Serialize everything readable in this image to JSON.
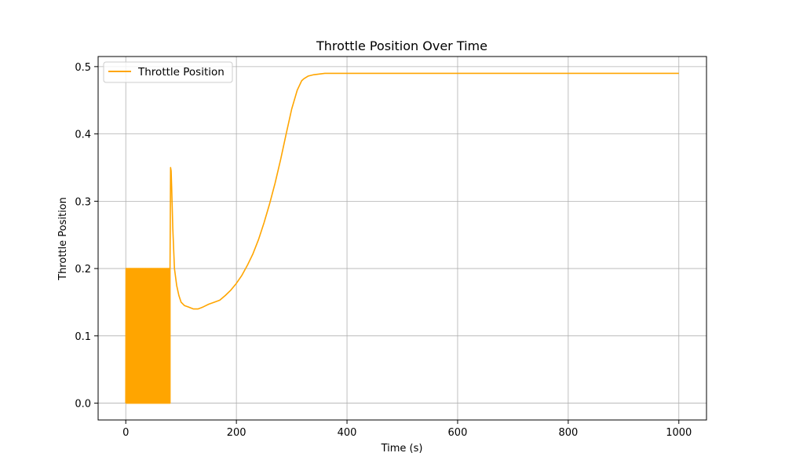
{
  "chart_data": {
    "type": "line",
    "title": "Throttle Position Over Time",
    "xlabel": "Time (s)",
    "ylabel": "Throttle Position",
    "xlim": [
      -50,
      1050
    ],
    "ylim": [
      -0.025,
      0.515
    ],
    "xticks": [
      0,
      200,
      400,
      600,
      800,
      1000
    ],
    "xtick_labels": [
      "0",
      "200",
      "400",
      "600",
      "800",
      "1000"
    ],
    "yticks": [
      0.0,
      0.1,
      0.2,
      0.3,
      0.4,
      0.5
    ],
    "ytick_labels": [
      "0.0",
      "0.1",
      "0.2",
      "0.3",
      "0.4",
      "0.5"
    ],
    "grid": true,
    "legend_position": "upper-left",
    "series": [
      {
        "name": "Throttle Position",
        "color": "#FFA500",
        "oscillation": {
          "x_start": 0,
          "x_end": 80,
          "low": 0.0,
          "high": 0.2,
          "step": 0.5
        },
        "x": [
          80,
          81,
          82,
          83,
          85,
          88,
          92,
          96,
          100,
          106,
          113,
          122,
          131,
          140,
          150,
          160,
          170,
          180,
          190,
          200,
          210,
          220,
          230,
          240,
          250,
          260,
          270,
          280,
          290,
          300,
          310,
          318,
          322,
          330,
          340,
          350,
          360,
          380,
          400,
          500,
          600,
          700,
          800,
          900,
          1000
        ],
        "y": [
          0.2,
          0.35,
          0.345,
          0.32,
          0.26,
          0.2,
          0.175,
          0.16,
          0.15,
          0.145,
          0.143,
          0.14,
          0.14,
          0.143,
          0.147,
          0.15,
          0.153,
          0.16,
          0.168,
          0.178,
          0.19,
          0.205,
          0.222,
          0.243,
          0.268,
          0.296,
          0.327,
          0.362,
          0.4,
          0.437,
          0.465,
          0.479,
          0.482,
          0.486,
          0.488,
          0.489,
          0.49,
          0.49,
          0.49,
          0.49,
          0.49,
          0.49,
          0.49,
          0.49,
          0.49
        ]
      }
    ]
  }
}
